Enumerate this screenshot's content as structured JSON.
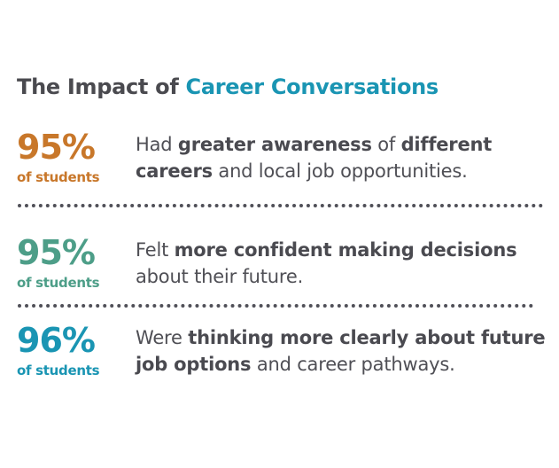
{
  "title": {
    "prefix": "The Impact of ",
    "accent": "Career Conversations"
  },
  "colors": {
    "title_text": "#4a4a4f",
    "title_accent": "#1a95b3",
    "stat1": "#c8772a",
    "stat2": "#4d9e88",
    "stat3": "#1a95b3",
    "body_text": "#4f4f55"
  },
  "stats": [
    {
      "percent": "95%",
      "of_label": "of students",
      "segments": [
        {
          "text": "Had ",
          "bold": false
        },
        {
          "text": "greater awareness",
          "bold": true
        },
        {
          "text": " of ",
          "bold": false
        },
        {
          "text": "different careers",
          "bold": true
        },
        {
          "text": " and local job opportunities.",
          "bold": false
        }
      ]
    },
    {
      "percent": "95%",
      "of_label": "of students",
      "segments": [
        {
          "text": "Felt ",
          "bold": false
        },
        {
          "text": "more confident making decisions",
          "bold": true
        },
        {
          "text": " about their future.",
          "bold": false
        }
      ]
    },
    {
      "percent": "96%",
      "of_label": "of students",
      "segments": [
        {
          "text": "Were ",
          "bold": false
        },
        {
          "text": "thinking more clearly about future job options",
          "bold": true
        },
        {
          "text": " and career pathways.",
          "bold": false
        }
      ]
    }
  ]
}
